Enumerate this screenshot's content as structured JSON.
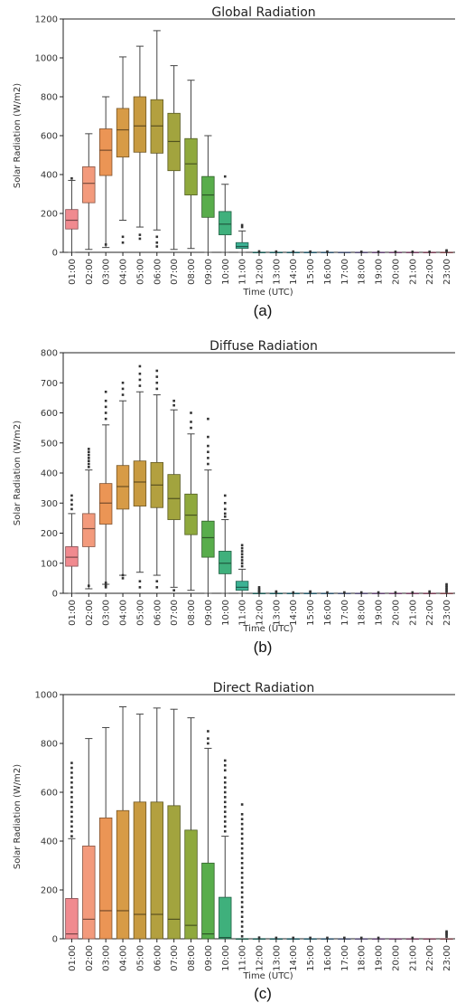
{
  "chart_data": [
    {
      "type": "box",
      "title": "Global Radiation",
      "xlabel": "Time (UTC)",
      "ylabel": "Solar Radiation (W/m2)",
      "caption": "(a)",
      "ylim": [
        0,
        1200
      ],
      "yticks": [
        0,
        200,
        400,
        600,
        800,
        1000,
        1200
      ],
      "categories": [
        "01:00",
        "02:00",
        "03:00",
        "04:00",
        "05:00",
        "06:00",
        "07:00",
        "08:00",
        "09:00",
        "10:00",
        "11:00",
        "12:00",
        "13:00",
        "14:00",
        "15:00",
        "16:00",
        "17:00",
        "18:00",
        "19:00",
        "20:00",
        "21:00",
        "22:00",
        "23:00"
      ],
      "colors": [
        "#f08a8f",
        "#f39a7c",
        "#eb9555",
        "#d79b46",
        "#c89a40",
        "#b3a03f",
        "#a2a43e",
        "#8fa93d",
        "#58ad4b",
        "#3fb07c",
        "#3cb294",
        "#3db3a7",
        "#3fb3b5",
        "#44b2c3",
        "#4db0d0",
        "#68acdc",
        "#8ea4e4",
        "#ad9ae8",
        "#c88fe4",
        "#dc86d8",
        "#eb81c4",
        "#f082ac",
        "#f38a97"
      ],
      "boxes": [
        {
          "min": 0,
          "q1": 120,
          "median": 165,
          "q3": 220,
          "max": 370,
          "outliers": [
            380
          ]
        },
        {
          "min": 15,
          "q1": 255,
          "median": 355,
          "q3": 440,
          "max": 610,
          "outliers": []
        },
        {
          "min": 25,
          "q1": 395,
          "median": 525,
          "q3": 635,
          "max": 800,
          "outliers": [
            40
          ]
        },
        {
          "min": 165,
          "q1": 490,
          "median": 630,
          "q3": 740,
          "max": 1005,
          "outliers": [
            50,
            80
          ]
        },
        {
          "min": 130,
          "q1": 515,
          "median": 650,
          "q3": 800,
          "max": 1060,
          "outliers": [
            70,
            90
          ]
        },
        {
          "min": 115,
          "q1": 510,
          "median": 650,
          "q3": 785,
          "max": 1140,
          "outliers": [
            30,
            50,
            80
          ]
        },
        {
          "min": 15,
          "q1": 420,
          "median": 570,
          "q3": 715,
          "max": 960,
          "outliers": []
        },
        {
          "min": 20,
          "q1": 295,
          "median": 455,
          "q3": 585,
          "max": 885,
          "outliers": []
        },
        {
          "min": 0,
          "q1": 180,
          "median": 295,
          "q3": 390,
          "max": 600,
          "outliers": []
        },
        {
          "min": 0,
          "q1": 90,
          "median": 145,
          "q3": 210,
          "max": 350,
          "outliers": [
            390
          ]
        },
        {
          "min": 0,
          "q1": 20,
          "median": 30,
          "q3": 50,
          "max": 110,
          "outliers": [
            130,
            140
          ]
        },
        {
          "min": 0,
          "q1": 0,
          "median": 0,
          "q3": 0,
          "max": 0,
          "outliers": [
            5
          ]
        },
        {
          "min": 0,
          "q1": 0,
          "median": 0,
          "q3": 0,
          "max": 0,
          "outliers": [
            4
          ]
        },
        {
          "min": 0,
          "q1": 0,
          "median": 0,
          "q3": 0,
          "max": 0,
          "outliers": [
            4
          ]
        },
        {
          "min": 0,
          "q1": 0,
          "median": 0,
          "q3": 0,
          "max": 0,
          "outliers": [
            4
          ]
        },
        {
          "min": 0,
          "q1": 0,
          "median": 0,
          "q3": 0,
          "max": 0,
          "outliers": [
            4
          ]
        },
        {
          "min": 0,
          "q1": 0,
          "median": 0,
          "q3": 0,
          "max": 0,
          "outliers": []
        },
        {
          "min": 0,
          "q1": 0,
          "median": 0,
          "q3": 0,
          "max": 0,
          "outliers": [
            3
          ]
        },
        {
          "min": 0,
          "q1": 0,
          "median": 0,
          "q3": 0,
          "max": 0,
          "outliers": [
            3
          ]
        },
        {
          "min": 0,
          "q1": 0,
          "median": 0,
          "q3": 0,
          "max": 0,
          "outliers": [
            3
          ]
        },
        {
          "min": 0,
          "q1": 0,
          "median": 0,
          "q3": 0,
          "max": 0,
          "outliers": [
            3
          ]
        },
        {
          "min": 0,
          "q1": 0,
          "median": 0,
          "q3": 0,
          "max": 0,
          "outliers": [
            3
          ]
        },
        {
          "min": 0,
          "q1": 0,
          "median": 0,
          "q3": 0,
          "max": 0,
          "outliers": [
            6,
            10
          ]
        }
      ]
    },
    {
      "type": "box",
      "title": "Diffuse Radiation",
      "xlabel": "Time (UTC)",
      "ylabel": "Solar Radiation (W/m2)",
      "caption": "(b)",
      "ylim": [
        0,
        800
      ],
      "yticks": [
        0,
        100,
        200,
        300,
        400,
        500,
        600,
        700,
        800
      ],
      "categories": [
        "01:00",
        "02:00",
        "03:00",
        "04:00",
        "05:00",
        "06:00",
        "07:00",
        "08:00",
        "09:00",
        "10:00",
        "11:00",
        "12:00",
        "13:00",
        "14:00",
        "15:00",
        "16:00",
        "17:00",
        "18:00",
        "19:00",
        "20:00",
        "21:00",
        "22:00",
        "23:00"
      ],
      "colors": [
        "#f08a8f",
        "#f39a7c",
        "#eb9555",
        "#d79b46",
        "#c89a40",
        "#b3a03f",
        "#a2a43e",
        "#8fa93d",
        "#58ad4b",
        "#3fb07c",
        "#3cb294",
        "#3db3a7",
        "#3fb3b5",
        "#44b2c3",
        "#4db0d0",
        "#68acdc",
        "#8ea4e4",
        "#ad9ae8",
        "#c88fe4",
        "#dc86d8",
        "#eb81c4",
        "#f082ac",
        "#f38a97"
      ],
      "boxes": [
        {
          "min": 0,
          "q1": 90,
          "median": 120,
          "q3": 155,
          "max": 265,
          "outliers": [
            280,
            295,
            310,
            325
          ]
        },
        {
          "min": 15,
          "q1": 155,
          "median": 215,
          "q3": 265,
          "max": 410,
          "outliers": [
            420,
            430,
            440,
            450,
            460,
            470,
            480,
            25
          ]
        },
        {
          "min": 30,
          "q1": 230,
          "median": 300,
          "q3": 365,
          "max": 560,
          "outliers": [
            580,
            600,
            620,
            640,
            670,
            20,
            25,
            35
          ]
        },
        {
          "min": 60,
          "q1": 280,
          "median": 355,
          "q3": 425,
          "max": 640,
          "outliers": [
            660,
            680,
            700,
            50,
            60
          ]
        },
        {
          "min": 70,
          "q1": 290,
          "median": 370,
          "q3": 440,
          "max": 670,
          "outliers": [
            690,
            710,
            730,
            755,
            20,
            40
          ]
        },
        {
          "min": 60,
          "q1": 285,
          "median": 360,
          "q3": 435,
          "max": 660,
          "outliers": [
            680,
            700,
            720,
            740,
            20,
            40
          ]
        },
        {
          "min": 20,
          "q1": 245,
          "median": 315,
          "q3": 395,
          "max": 610,
          "outliers": [
            625,
            640,
            10
          ]
        },
        {
          "min": 10,
          "q1": 195,
          "median": 260,
          "q3": 330,
          "max": 530,
          "outliers": [
            550,
            570,
            600
          ]
        },
        {
          "min": 0,
          "q1": 120,
          "median": 185,
          "q3": 240,
          "max": 410,
          "outliers": [
            430,
            450,
            470,
            490,
            520,
            580
          ]
        },
        {
          "min": 0,
          "q1": 65,
          "median": 100,
          "q3": 140,
          "max": 245,
          "outliers": [
            255,
            265,
            280,
            300,
            325
          ]
        },
        {
          "min": 0,
          "q1": 10,
          "median": 20,
          "q3": 40,
          "max": 80,
          "outliers": [
            90,
            100,
            110,
            120,
            130,
            140,
            150,
            160
          ]
        },
        {
          "min": 0,
          "q1": 0,
          "median": 0,
          "q3": 0,
          "max": 0,
          "outliers": [
            3,
            6,
            10,
            15,
            20
          ]
        },
        {
          "min": 0,
          "q1": 0,
          "median": 0,
          "q3": 0,
          "max": 0,
          "outliers": [
            3,
            6
          ]
        },
        {
          "min": 0,
          "q1": 0,
          "median": 0,
          "q3": 0,
          "max": 0,
          "outliers": [
            3
          ]
        },
        {
          "min": 0,
          "q1": 0,
          "median": 0,
          "q3": 0,
          "max": 0,
          "outliers": [
            3,
            6
          ]
        },
        {
          "min": 0,
          "q1": 0,
          "median": 0,
          "q3": 0,
          "max": 0,
          "outliers": [
            3
          ]
        },
        {
          "min": 0,
          "q1": 0,
          "median": 0,
          "q3": 0,
          "max": 0,
          "outliers": [
            3
          ]
        },
        {
          "min": 0,
          "q1": 0,
          "median": 0,
          "q3": 0,
          "max": 0,
          "outliers": [
            3
          ]
        },
        {
          "min": 0,
          "q1": 0,
          "median": 0,
          "q3": 0,
          "max": 0,
          "outliers": [
            3
          ]
        },
        {
          "min": 0,
          "q1": 0,
          "median": 0,
          "q3": 0,
          "max": 0,
          "outliers": [
            3
          ]
        },
        {
          "min": 0,
          "q1": 0,
          "median": 0,
          "q3": 0,
          "max": 0,
          "outliers": [
            3
          ]
        },
        {
          "min": 0,
          "q1": 0,
          "median": 0,
          "q3": 0,
          "max": 0,
          "outliers": [
            3,
            6
          ]
        },
        {
          "min": 0,
          "q1": 0,
          "median": 0,
          "q3": 0,
          "max": 0,
          "outliers": [
            5,
            10,
            15,
            20,
            25,
            30
          ]
        }
      ]
    },
    {
      "type": "box",
      "title": "Direct Radiation",
      "xlabel": "Time (UTC)",
      "ylabel": "Solar Radiation (W/m2)",
      "caption": "(c)",
      "ylim": [
        0,
        1000
      ],
      "yticks": [
        0,
        200,
        400,
        600,
        800,
        1000
      ],
      "categories": [
        "01:00",
        "02:00",
        "03:00",
        "04:00",
        "05:00",
        "06:00",
        "07:00",
        "08:00",
        "09:00",
        "10:00",
        "11:00",
        "12:00",
        "13:00",
        "14:00",
        "15:00",
        "16:00",
        "17:00",
        "18:00",
        "19:00",
        "20:00",
        "21:00",
        "22:00",
        "23:00"
      ],
      "colors": [
        "#f08a8f",
        "#f39a7c",
        "#eb9555",
        "#d79b46",
        "#c89a40",
        "#b3a03f",
        "#a2a43e",
        "#8fa93d",
        "#58ad4b",
        "#3fb07c",
        "#3cb294",
        "#3db3a7",
        "#3fb3b5",
        "#44b2c3",
        "#4db0d0",
        "#68acdc",
        "#8ea4e4",
        "#ad9ae8",
        "#c88fe4",
        "#dc86d8",
        "#eb81c4",
        "#f082ac",
        "#f38a97"
      ],
      "boxes": [
        {
          "min": 0,
          "q1": 0,
          "median": 20,
          "q3": 165,
          "max": 410,
          "outliers": [
            420,
            440,
            460,
            480,
            500,
            520,
            540,
            560,
            580,
            600,
            620,
            640,
            660,
            680,
            700,
            720
          ]
        },
        {
          "min": 0,
          "q1": 0,
          "median": 80,
          "q3": 380,
          "max": 820,
          "outliers": []
        },
        {
          "min": 0,
          "q1": 0,
          "median": 115,
          "q3": 495,
          "max": 865,
          "outliers": []
        },
        {
          "min": 0,
          "q1": 0,
          "median": 115,
          "q3": 525,
          "max": 950,
          "outliers": []
        },
        {
          "min": 0,
          "q1": 0,
          "median": 100,
          "q3": 560,
          "max": 920,
          "outliers": []
        },
        {
          "min": 0,
          "q1": 0,
          "median": 100,
          "q3": 560,
          "max": 945,
          "outliers": []
        },
        {
          "min": 0,
          "q1": 0,
          "median": 80,
          "q3": 545,
          "max": 940,
          "outliers": []
        },
        {
          "min": 0,
          "q1": 0,
          "median": 55,
          "q3": 445,
          "max": 905,
          "outliers": []
        },
        {
          "min": 0,
          "q1": 0,
          "median": 20,
          "q3": 310,
          "max": 780,
          "outliers": [
            800,
            820,
            850
          ]
        },
        {
          "min": 0,
          "q1": 0,
          "median": 5,
          "q3": 170,
          "max": 420,
          "outliers": [
            440,
            460,
            480,
            500,
            520,
            540,
            560,
            580,
            600,
            620,
            640,
            660,
            690,
            710,
            730
          ]
        },
        {
          "min": 0,
          "q1": 0,
          "median": 0,
          "q3": 0,
          "max": 0,
          "outliers": [
            10,
            30,
            50,
            70,
            90,
            110,
            130,
            150,
            170,
            190,
            210,
            230,
            250,
            270,
            290,
            310,
            330,
            350,
            370,
            390,
            410,
            430,
            450,
            470,
            490,
            510,
            550
          ]
        },
        {
          "min": 0,
          "q1": 0,
          "median": 0,
          "q3": 0,
          "max": 0,
          "outliers": [
            5
          ]
        },
        {
          "min": 0,
          "q1": 0,
          "median": 0,
          "q3": 0,
          "max": 0,
          "outliers": [
            4
          ]
        },
        {
          "min": 0,
          "q1": 0,
          "median": 0,
          "q3": 0,
          "max": 0,
          "outliers": [
            4
          ]
        },
        {
          "min": 0,
          "q1": 0,
          "median": 0,
          "q3": 0,
          "max": 0,
          "outliers": [
            4
          ]
        },
        {
          "min": 0,
          "q1": 0,
          "median": 0,
          "q3": 0,
          "max": 0,
          "outliers": [
            4
          ]
        },
        {
          "min": 0,
          "q1": 0,
          "median": 0,
          "q3": 0,
          "max": 0,
          "outliers": [
            4
          ]
        },
        {
          "min": 0,
          "q1": 0,
          "median": 0,
          "q3": 0,
          "max": 0,
          "outliers": [
            4
          ]
        },
        {
          "min": 0,
          "q1": 0,
          "median": 0,
          "q3": 0,
          "max": 0,
          "outliers": [
            4
          ]
        },
        {
          "min": 0,
          "q1": 0,
          "median": 0,
          "q3": 0,
          "max": 0,
          "outliers": []
        },
        {
          "min": 0,
          "q1": 0,
          "median": 0,
          "q3": 0,
          "max": 0,
          "outliers": [
            4
          ]
        },
        {
          "min": 0,
          "q1": 0,
          "median": 0,
          "q3": 0,
          "max": 0,
          "outliers": []
        },
        {
          "min": 0,
          "q1": 0,
          "median": 0,
          "q3": 0,
          "max": 0,
          "outliers": [
            8,
            15,
            20,
            25,
            30
          ]
        }
      ]
    }
  ]
}
